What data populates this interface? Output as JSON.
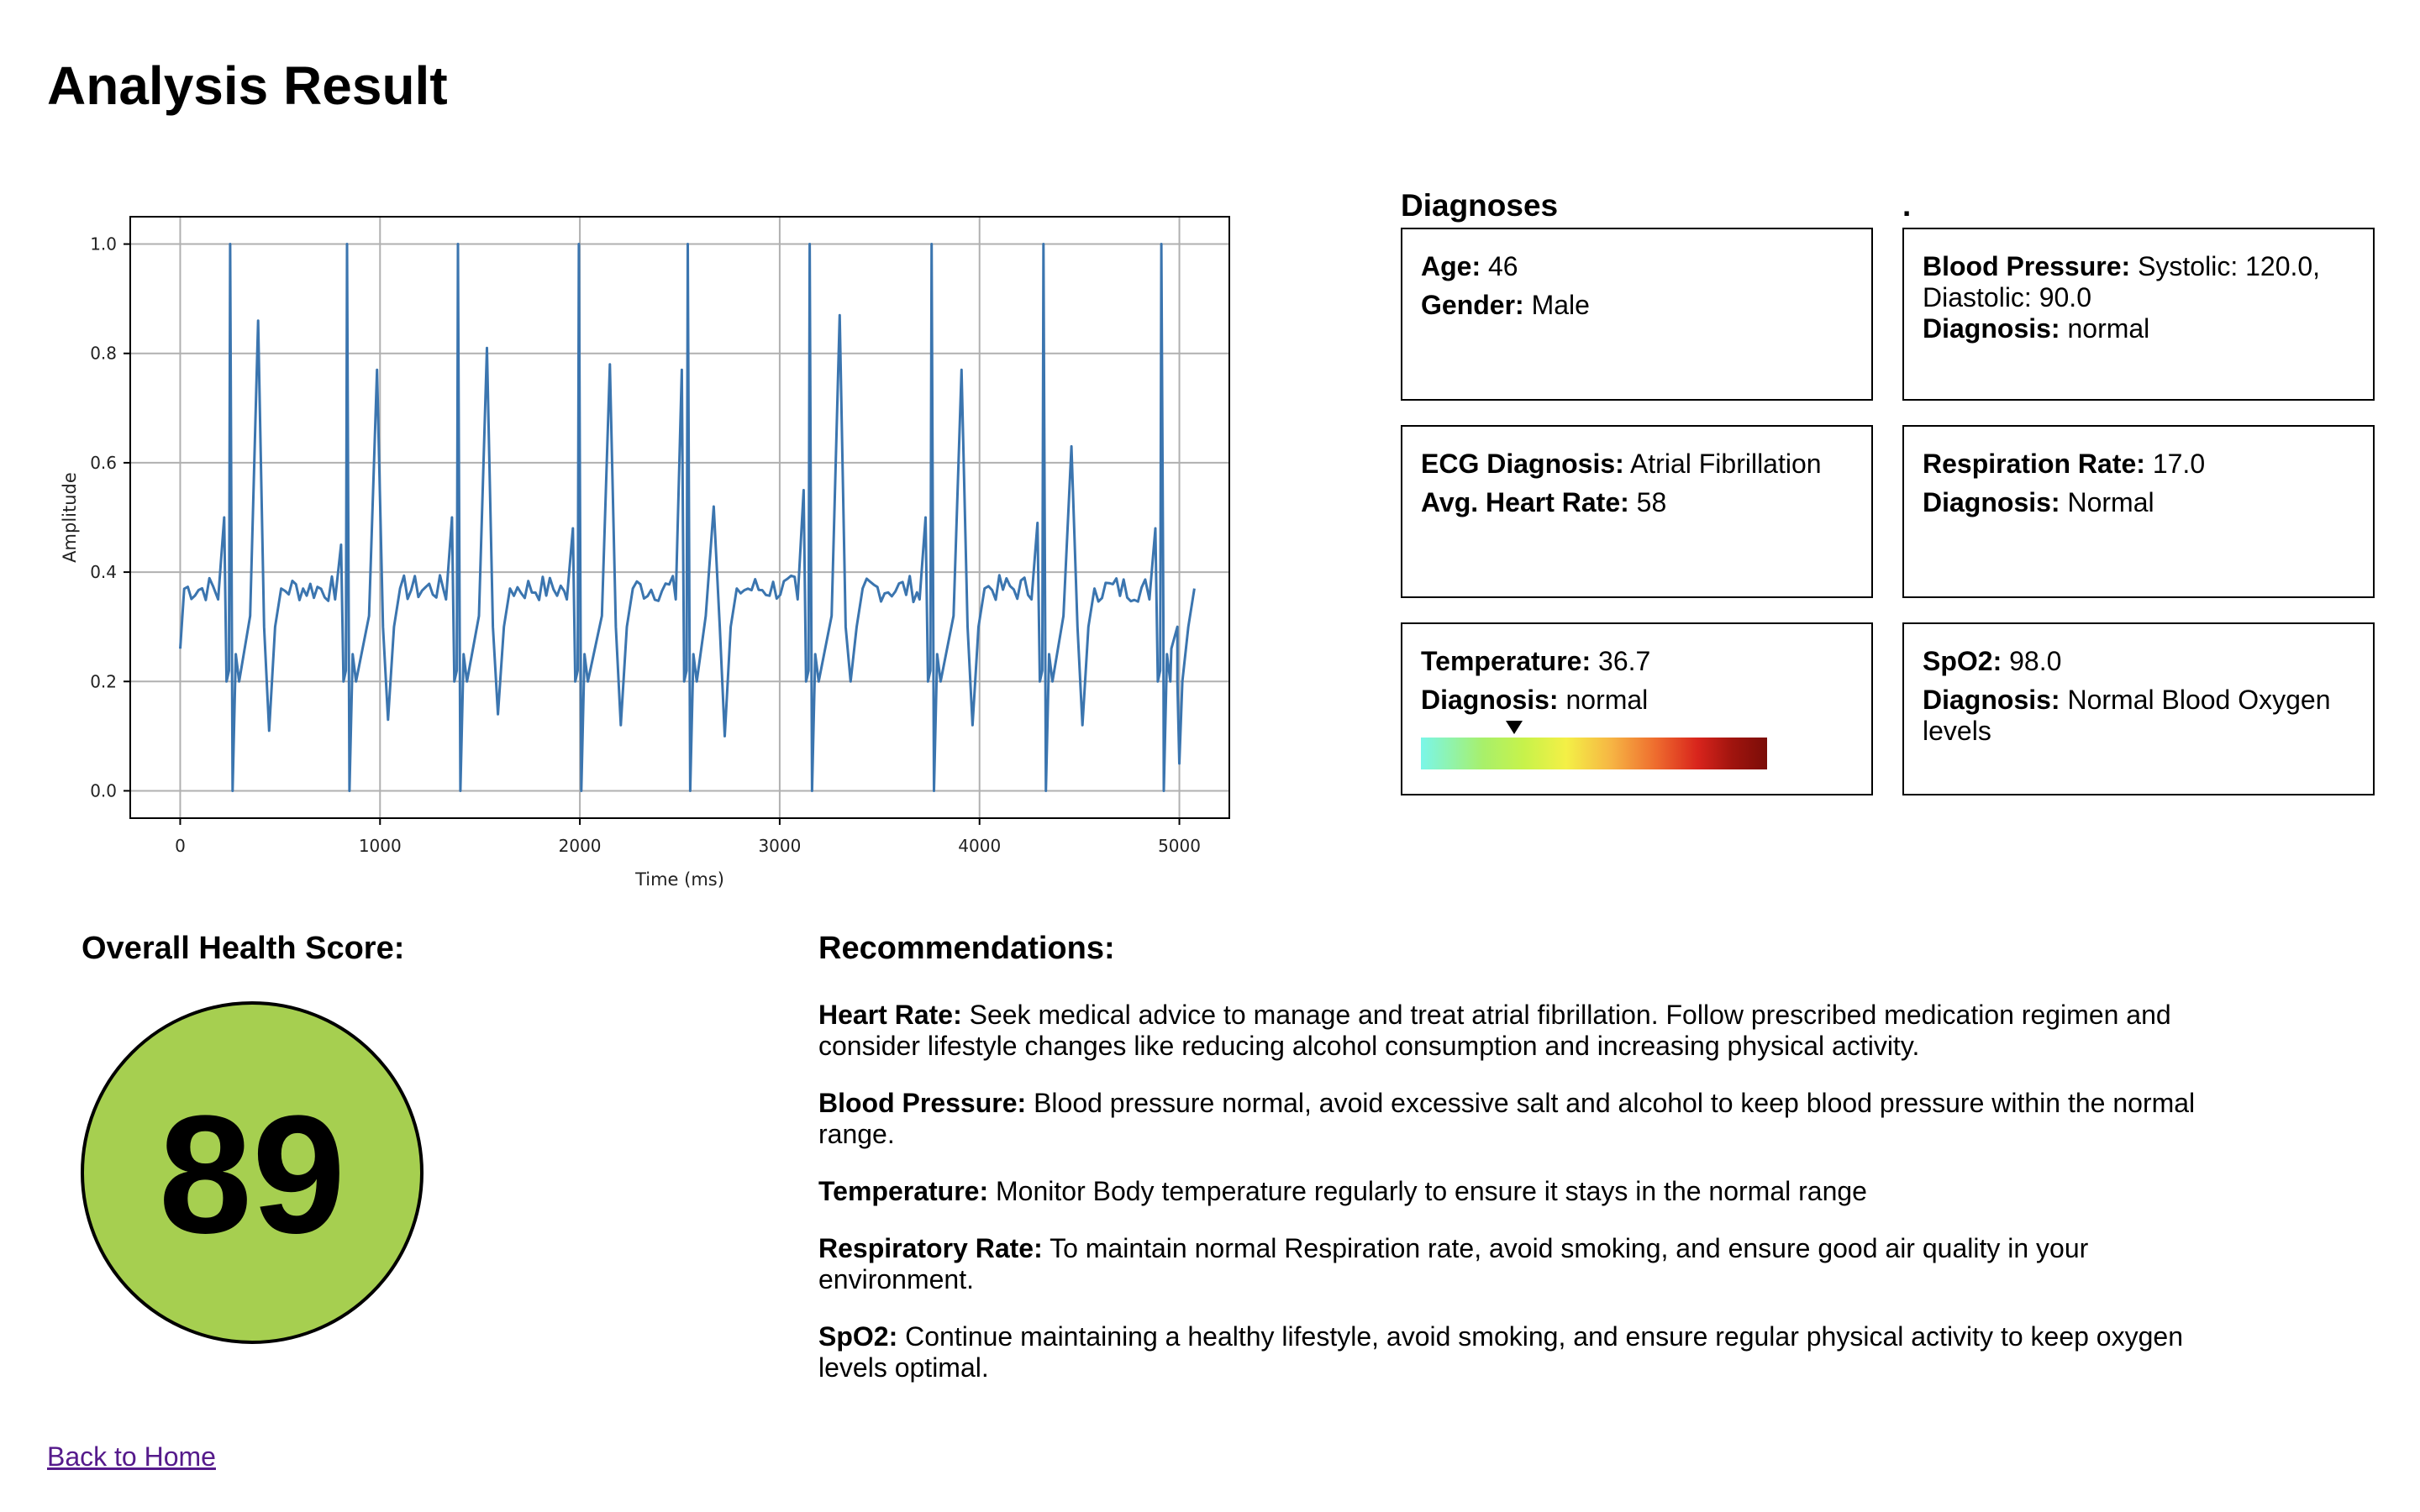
{
  "page": {
    "title": "Analysis Result"
  },
  "chart_data": {
    "type": "line",
    "title": "",
    "xlabel": "Time (ms)",
    "ylabel": "Amplitude",
    "xlim": [
      -250,
      5250
    ],
    "ylim": [
      -0.05,
      1.05
    ],
    "xticks": [
      0,
      1000,
      2000,
      3000,
      4000,
      5000
    ],
    "yticks": [
      0.0,
      0.2,
      0.4,
      0.6,
      0.8,
      1.0
    ],
    "grid": true,
    "series_color": "#3b75af",
    "baseline": 0.37,
    "start_value": 0.26,
    "end_value": 0.05,
    "beats": [
      {
        "r_time": 250,
        "s_depth": 0.0,
        "q_height": 0.5,
        "t_time": 390,
        "t_peak": 0.86,
        "t_trough": 0.11
      },
      {
        "r_time": 835,
        "s_depth": 0.0,
        "q_height": 0.45,
        "t_time": 985,
        "t_peak": 0.77,
        "t_trough": 0.13
      },
      {
        "r_time": 1390,
        "s_depth": 0.0,
        "q_height": 0.5,
        "t_time": 1535,
        "t_peak": 0.81,
        "t_trough": 0.14
      },
      {
        "r_time": 1995,
        "s_depth": 0.0,
        "q_height": 0.48,
        "t_time": 2150,
        "t_peak": 0.78,
        "t_trough": 0.12
      },
      {
        "r_time": 2540,
        "s_depth": 0.0,
        "q_height": 0.77,
        "t_time": 2670,
        "t_peak": 0.52,
        "t_trough": 0.1
      },
      {
        "r_time": 3150,
        "s_depth": 0.0,
        "q_height": 0.55,
        "t_time": 3300,
        "t_peak": 0.87,
        "t_trough": 0.2
      },
      {
        "r_time": 3760,
        "s_depth": 0.0,
        "q_height": 0.5,
        "t_time": 3910,
        "t_peak": 0.77,
        "t_trough": 0.12
      },
      {
        "r_time": 4320,
        "s_depth": 0.0,
        "q_height": 0.49,
        "t_time": 4460,
        "t_peak": 0.63,
        "t_trough": 0.12
      },
      {
        "r_time": 4910,
        "s_depth": 0.0,
        "q_height": 0.48,
        "t_time": 4960,
        "t_peak": 0.26,
        "t_trough": 0.2
      }
    ],
    "r_peak": 1.0
  },
  "diagnoses": {
    "heading": "Diagnoses",
    "dot": ".",
    "age": {
      "label": "Age:",
      "value": "46"
    },
    "gender": {
      "label": "Gender:",
      "value": "Male"
    },
    "blood_pressure": {
      "label": "Blood Pressure:",
      "value": "Systolic: 120.0, Diastolic: 90.0",
      "diag_label": "Diagnosis:",
      "diag_value": "normal"
    },
    "ecg": {
      "label": "ECG Diagnosis:",
      "value": "Atrial Fibrillation"
    },
    "heart_rate": {
      "label": "Avg. Heart Rate:",
      "value": "58"
    },
    "respiration": {
      "label": "Respiration Rate:",
      "value": "17.0",
      "diag_label": "Diagnosis:",
      "diag_value": "Normal"
    },
    "temperature": {
      "label": "Temperature:",
      "value": "36.7",
      "diag_label": "Diagnosis:",
      "diag_value": "normal",
      "scale_position": 0.27
    },
    "spo2": {
      "label": "SpO2:",
      "value": "98.0",
      "diag_label": "Diagnosis:",
      "diag_value": "Normal Blood Oxygen levels"
    }
  },
  "health_score": {
    "heading": "Overall Health Score:",
    "value": "89",
    "color": "#a6cf50"
  },
  "recommendations": {
    "heading": "Recommendations:",
    "items": [
      {
        "label": "Heart Rate:",
        "text": "Seek medical advice to manage and treat atrial fibrillation. Follow prescribed medication regimen and consider lifestyle changes like reducing alcohol consumption and increasing physical activity."
      },
      {
        "label": "Blood Pressure:",
        "text": "Blood pressure normal, avoid excessive salt and alcohol to keep blood pressure within the normal range."
      },
      {
        "label": "Temperature:",
        "text": "Monitor Body temperature regularly to ensure it stays in the normal range"
      },
      {
        "label": "Respiratory Rate:",
        "text": "To maintain normal Respiration rate, avoid smoking, and ensure good air quality in your environment."
      },
      {
        "label": "SpO2:",
        "text": "Continue maintaining a healthy lifestyle, avoid smoking, and ensure regular physical activity to keep oxygen levels optimal."
      }
    ]
  },
  "footer": {
    "back_link": "Back to Home"
  }
}
